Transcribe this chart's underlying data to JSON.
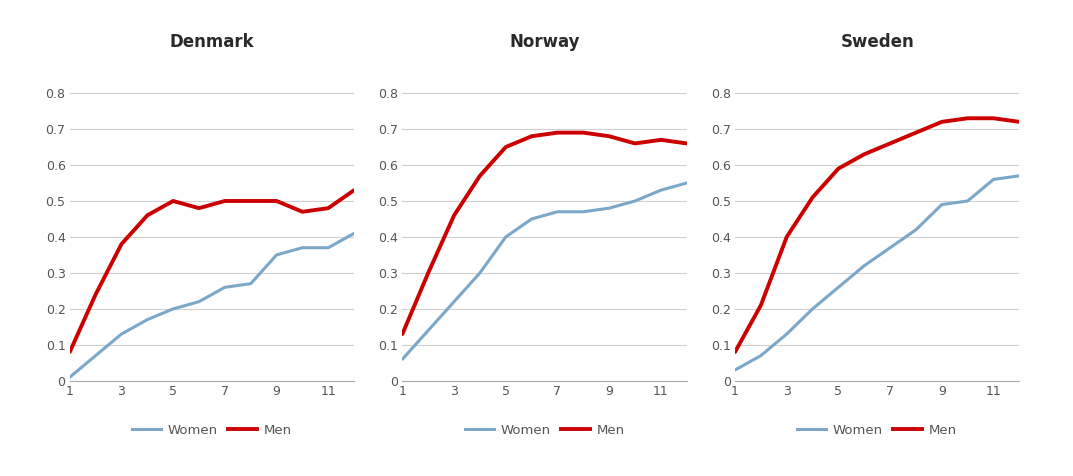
{
  "countries": [
    "Denmark",
    "Norway",
    "Sweden"
  ],
  "x": [
    1,
    2,
    3,
    4,
    5,
    6,
    7,
    8,
    9,
    10,
    11,
    12
  ],
  "denmark": {
    "women": [
      0.01,
      0.07,
      0.13,
      0.17,
      0.2,
      0.22,
      0.26,
      0.27,
      0.35,
      0.37,
      0.37,
      0.41
    ],
    "men": [
      0.08,
      0.24,
      0.38,
      0.46,
      0.5,
      0.48,
      0.5,
      0.5,
      0.5,
      0.47,
      0.48,
      0.53
    ]
  },
  "norway": {
    "women": [
      0.06,
      0.14,
      0.22,
      0.3,
      0.4,
      0.45,
      0.47,
      0.47,
      0.48,
      0.5,
      0.53,
      0.55
    ],
    "men": [
      0.13,
      0.3,
      0.46,
      0.57,
      0.65,
      0.68,
      0.69,
      0.69,
      0.68,
      0.66,
      0.67,
      0.66
    ]
  },
  "sweden": {
    "women": [
      0.03,
      0.07,
      0.13,
      0.2,
      0.26,
      0.32,
      0.37,
      0.42,
      0.49,
      0.5,
      0.56,
      0.57
    ],
    "men": [
      0.08,
      0.21,
      0.4,
      0.51,
      0.59,
      0.63,
      0.66,
      0.69,
      0.72,
      0.73,
      0.73,
      0.72
    ]
  },
  "women_color": "#7BA7C9",
  "men_color": "#CC0000",
  "women_linewidth": 2.2,
  "men_linewidth": 2.8,
  "title_fontsize": 12,
  "tick_fontsize": 9,
  "legend_fontsize": 9.5,
  "ylim": [
    0,
    0.9
  ],
  "yticks": [
    0,
    0.1,
    0.2,
    0.3,
    0.4,
    0.5,
    0.6,
    0.7,
    0.8
  ],
  "ytick_labels": [
    "0",
    "0.1",
    "0.2",
    "0.3",
    "0.4",
    "0.5",
    "0.6",
    "0.7",
    "0.8"
  ],
  "xticks": [
    1,
    3,
    5,
    7,
    9,
    11
  ],
  "xtick_labels": [
    "1",
    "3",
    "5",
    "7",
    "9",
    "11"
  ],
  "outer_bg": "#e8e8e8",
  "panel_bg": "#ffffff",
  "grid_color": "#d0d0d0",
  "border_color": "#c0c0c0",
  "title_color": "#2a2a2a",
  "tick_color": "#555555"
}
